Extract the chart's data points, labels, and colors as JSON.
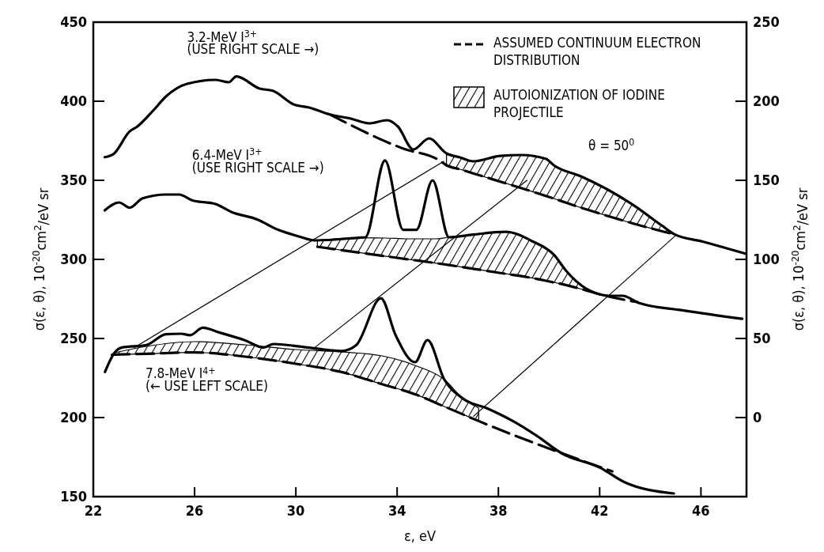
{
  "chart_data": {
    "type": "line",
    "xlabel": "ε, eV",
    "ylabel": "σ(ε, θ), 10$^{-20}$cm$^{2}$/eV sr",
    "y2label": "σ(ε, θ), 10$^{-20}$cm$^{2}$/eV sr",
    "xlim": [
      22,
      47.8
    ],
    "xticks": [
      22,
      26,
      30,
      34,
      38,
      42,
      46
    ],
    "ylim": [
      150,
      450
    ],
    "yticks": [
      150,
      200,
      250,
      300,
      350,
      400,
      450
    ],
    "y2lim": [
      -50,
      250
    ],
    "y2ticks": [
      0,
      50,
      100,
      150,
      200,
      250
    ],
    "legend": "top right",
    "annotations": [
      "AUTOIONIZATION OF IODINE PROJECTILE",
      "θ = 50$^{0}$"
    ],
    "series": [
      {
        "name": "3.2-MeV I$^{3+}$\n(USE RIGHT SCALE →)",
        "color": "#000000",
        "axis": "y2",
        "x": [
          22.45,
          22.81,
          23.43,
          23.74,
          24.36,
          24.87,
          25.7,
          26.83,
          27.35,
          27.65,
          28.57,
          29.09,
          29.91,
          30.53,
          31.35,
          32.17,
          32.89,
          33.61,
          34.03,
          34.64,
          35.26,
          35.95,
          36.48,
          37.0,
          38.07,
          38.92,
          39.87,
          40.2,
          41.26,
          42.33,
          43.39,
          44.44,
          44.98,
          46.04,
          47.74
        ],
        "values": [
          164.6,
          166.8,
          180.8,
          184,
          194,
          203,
          211,
          213.5,
          212,
          215.7,
          208,
          206.6,
          198,
          196,
          191.6,
          189,
          186,
          188,
          184,
          169.5,
          176.5,
          167,
          164.5,
          162,
          165.4,
          166,
          163.6,
          159.4,
          152.5,
          144,
          133.7,
          121.6,
          115.7,
          111.4,
          103.7
        ]
      },
      {
        "name": "6.4-MeV I$^{3+}$\n(USE RIGHT SCALE →)",
        "color": "#000000",
        "axis": "y2",
        "x": [
          22.45,
          23.02,
          23.43,
          23.95,
          24.87,
          25.39,
          25.9,
          26.83,
          27.45,
          28.47,
          29.3,
          30.12,
          30.74,
          32.49,
          32.75,
          33.52,
          34.24,
          34.76,
          35.4,
          36.05,
          37.0,
          38.28,
          39.35,
          40.2,
          40.69,
          41.46,
          42.43,
          42.9,
          43.57,
          45.32,
          47.63
        ],
        "values": [
          131,
          136,
          132.7,
          138.6,
          141,
          141,
          137.4,
          135,
          130,
          125.3,
          118.7,
          114.5,
          112,
          113.7,
          114,
          162.6,
          118.7,
          118.7,
          150,
          114,
          115.7,
          117.4,
          111.4,
          102.8,
          92.5,
          81.6,
          77,
          77,
          72.4,
          67.7,
          62.4
        ]
      },
      {
        "name": "7.8-MeV I$^{4+}$\n(← USE LEFT SCALE)",
        "color": "#000000",
        "x": [
          22.46,
          22.85,
          23.13,
          24.1,
          24.87,
          25.45,
          25.83,
          26.32,
          27.0,
          27.96,
          28.73,
          29.12,
          30.46,
          31.81,
          32.39,
          33.36,
          33.94,
          34.71,
          35.2,
          35.86,
          36.63,
          37.6,
          38.57,
          39.53,
          40.49,
          42.03,
          43.0,
          44.93
        ],
        "values": [
          228.8,
          241.2,
          244.3,
          245.9,
          252.7,
          253,
          252.1,
          256.8,
          253.7,
          249,
          244.3,
          246.5,
          244.3,
          242.1,
          245.9,
          275.4,
          252.1,
          235,
          249,
          224.1,
          211.7,
          205.5,
          197.8,
          188.3,
          177.5,
          168.2,
          159,
          152
        ]
      },
      {
        "name": "ASSUMED CONTINUUM ELECTRON DISTRIBUTION",
        "color": "#000000",
        "line_style": "dashed",
        "axis": "y2",
        "x": [
          31.35,
          34.25,
          35.67,
          35.95,
          36.48,
          37.0,
          38.07,
          38.92,
          39.87,
          40.2,
          41.26,
          42.33,
          43.39,
          44.44,
          44.98
        ],
        "values": [
          191.6,
          170,
          162.6,
          159.5,
          157,
          154.4,
          149.2,
          145,
          140.1,
          138.4,
          132.7,
          127.4,
          122.4,
          117.9,
          115.7
        ],
        "lower": [
          null,
          null,
          null,
          159.5,
          157,
          154.4,
          149.2,
          145,
          140.1,
          138.4,
          132.7,
          127.4,
          122.4,
          117.9,
          115.7
        ],
        "upper": [
          null,
          null,
          null,
          167,
          164.5,
          162,
          165.4,
          166,
          163.6,
          159.4,
          152.5,
          144,
          133.7,
          121.6,
          115.7
        ]
      },
      {
        "color": "#000000",
        "line_style": "dashed",
        "axis": "y2",
        "x": [
          30.85,
          32.5,
          33.5,
          34.5,
          35.5,
          36.05,
          37.0,
          38.28,
          39.35,
          40.2,
          40.69,
          41.46,
          42.23,
          43.5
        ],
        "values": [
          108,
          104.3,
          102.1,
          99.9,
          97.7,
          96.4,
          94.1,
          90.9,
          88.2,
          85.4,
          83.7,
          80.4,
          77,
          73
        ],
        "lower": [
          108,
          104.3,
          102.1,
          99.9,
          97.7,
          96.4,
          94.1,
          90.9,
          88.2,
          85.4,
          83.7,
          80.4,
          77,
          null
        ],
        "upper": [
          112,
          113.7,
          113.5,
          113,
          113,
          114,
          115.7,
          117.4,
          111.4,
          102.8,
          92.5,
          81.6,
          77,
          null
        ]
      },
      {
        "color": "#000000",
        "line_style": "dashed",
        "x": [
          22.74,
          22.85,
          24.1,
          26,
          28,
          30,
          31.8,
          33.4,
          34.7,
          35.86,
          36.63,
          37.22,
          40.49,
          42.5
        ],
        "values": [
          239.7,
          239.8,
          240.3,
          241.2,
          238.5,
          234,
          228.8,
          221.1,
          214.8,
          207,
          201.8,
          197.8,
          177.5,
          166
        ],
        "lower": [
          null,
          239.8,
          240.3,
          241.2,
          238.5,
          234,
          228.8,
          221.1,
          214.8,
          207,
          201.8,
          197.8,
          null,
          null
        ],
        "upper": [
          null,
          241,
          245,
          248,
          246,
          243,
          241.5,
          239,
          233,
          224.1,
          211.7,
          206,
          null,
          null
        ]
      },
      {
        "color": "#000000",
        "x": [
          23.62,
          35.84
        ],
        "values": [
          244.3,
          362
        ]
      },
      {
        "color": "#000000",
        "x": [
          30.75,
          39.13
        ],
        "values": [
          244.3,
          350
        ]
      },
      {
        "color": "#000000",
        "x": [
          37.02,
          44.98
        ],
        "values": [
          200.8,
          314.8
        ]
      }
    ]
  }
}
